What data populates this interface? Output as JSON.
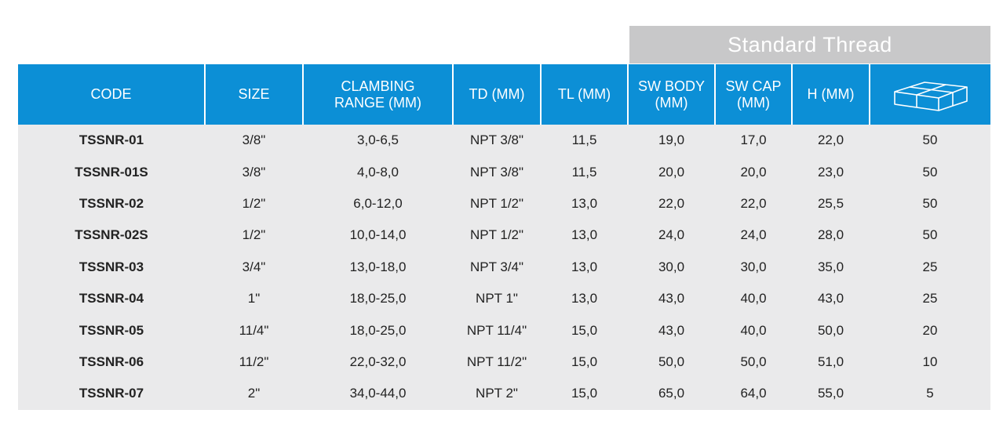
{
  "banner": {
    "title": "Standard Thread"
  },
  "table": {
    "headers": [
      {
        "line1": "CODE",
        "line2": ""
      },
      {
        "line1": "SIZE",
        "line2": ""
      },
      {
        "line1": "CLAMBING",
        "line2": "RANGE (MM)"
      },
      {
        "line1": "TD (MM)",
        "line2": ""
      },
      {
        "line1": "TL (MM)",
        "line2": ""
      },
      {
        "line1": "SW BODY",
        "line2": "(MM)"
      },
      {
        "line1": "SW CAP",
        "line2": "(MM)"
      },
      {
        "line1": "H (MM)",
        "line2": ""
      }
    ],
    "icon_header": "boxes-icon",
    "rows": [
      [
        "TSSNR-01",
        "3/8\"",
        "3,0-6,5",
        "NPT 3/8\"",
        "11,5",
        "19,0",
        "17,0",
        "22,0",
        "50"
      ],
      [
        "TSSNR-01S",
        "3/8\"",
        "4,0-8,0",
        "NPT 3/8\"",
        "11,5",
        "20,0",
        "20,0",
        "23,0",
        "50"
      ],
      [
        "TSSNR-02",
        "1/2\"",
        "6,0-12,0",
        "NPT 1/2\"",
        "13,0",
        "22,0",
        "22,0",
        "25,5",
        "50"
      ],
      [
        "TSSNR-02S",
        "1/2\"",
        "10,0-14,0",
        "NPT 1/2\"",
        "13,0",
        "24,0",
        "24,0",
        "28,0",
        "50"
      ],
      [
        "TSSNR-03",
        "3/4\"",
        "13,0-18,0",
        "NPT 3/4\"",
        "13,0",
        "30,0",
        "30,0",
        "35,0",
        "25"
      ],
      [
        "TSSNR-04",
        "1\"",
        "18,0-25,0",
        "NPT 1\"",
        "13,0",
        "43,0",
        "40,0",
        "43,0",
        "25"
      ],
      [
        "TSSNR-05",
        "11/4\"",
        "18,0-25,0",
        "NPT 11/4\"",
        "15,0",
        "43,0",
        "40,0",
        "50,0",
        "20"
      ],
      [
        "TSSNR-06",
        "11/2\"",
        "22,0-32,0",
        "NPT 11/2\"",
        "15,0",
        "50,0",
        "50,0",
        "51,0",
        "10"
      ],
      [
        "TSSNR-07",
        "2\"",
        "34,0-44,0",
        "NPT 2\"",
        "15,0",
        "65,0",
        "64,0",
        "55,0",
        "5"
      ]
    ]
  },
  "colors": {
    "header_bg": "#0c8fd6",
    "banner_bg": "#c8c8c9",
    "row_bg": "#eaeaeb"
  }
}
